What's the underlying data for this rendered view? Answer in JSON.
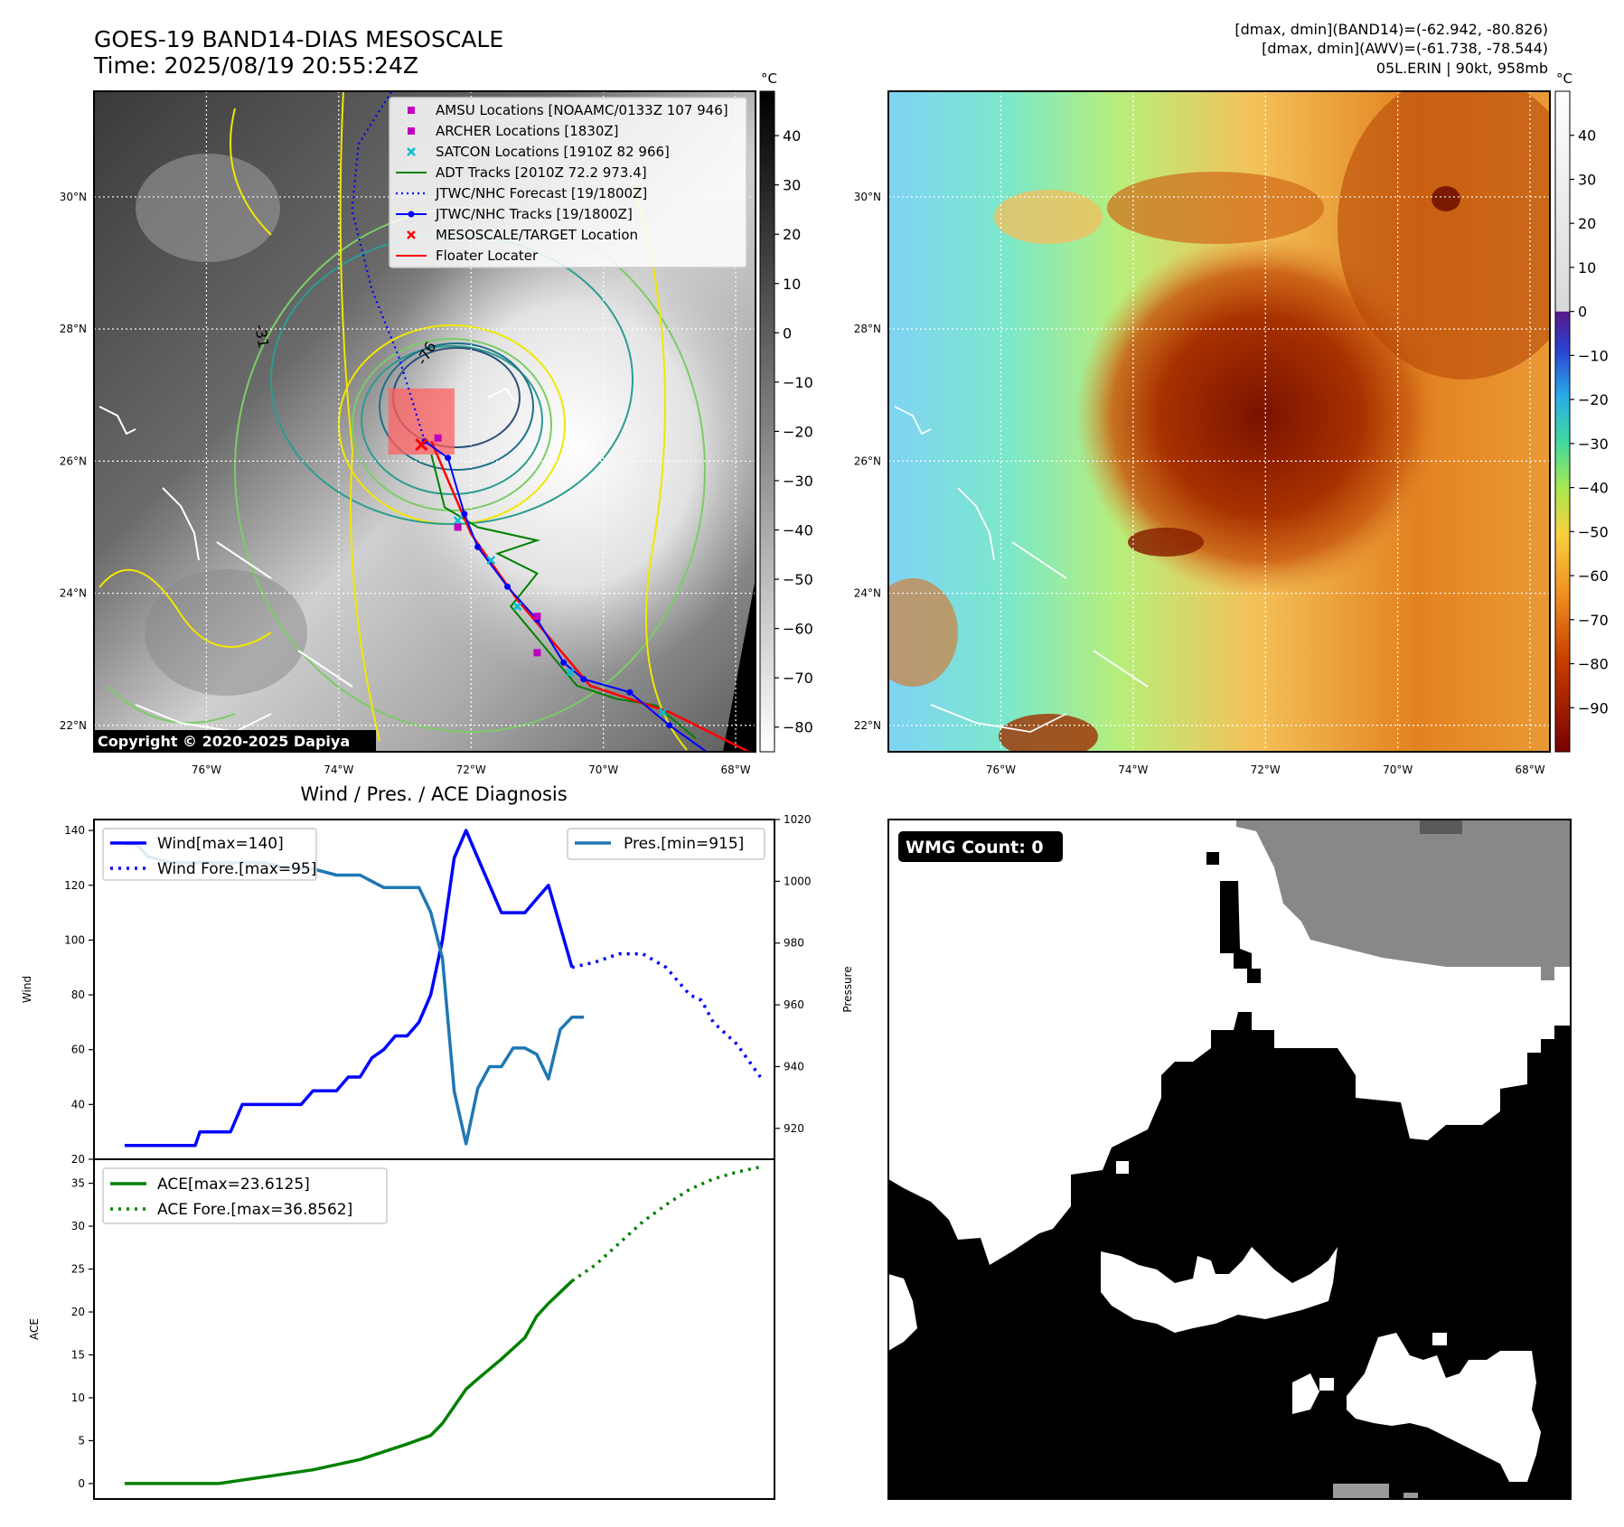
{
  "header": {
    "title": "GOES-19 BAND14-DIAS MESOSCALE",
    "time": "Time: 2025/08/19 20:55:24Z",
    "stats_band14": "[dmax, dmin](BAND14)=(-62.942, -80.826)",
    "stats_awv": "[dmax, dmin](AWV)=(-61.738, -78.544)",
    "storm": "05L.ERIN | 90kt, 958mb",
    "copyright": "Copyright © 2020-2025 Dapiya"
  },
  "map": {
    "lat_labels": [
      "30°N",
      "28°N",
      "26°N",
      "24°N",
      "22°N"
    ],
    "lat_values": [
      30,
      28,
      26,
      24,
      22
    ],
    "lon_labels": [
      "76°W",
      "74°W",
      "72°W",
      "70°W",
      "68°W"
    ],
    "lon_values": [
      -76,
      -74,
      -72,
      -70,
      -68
    ],
    "lat_range": [
      21.6,
      31.6
    ],
    "lon_range": [
      -77.7,
      -67.7
    ],
    "contour_labels": [
      "-31",
      "-76"
    ],
    "legend": [
      {
        "label": "AMSU Locations [NOAAMC/0133Z 107 946]",
        "marker": "square",
        "color": "#c000c0"
      },
      {
        "label": "ARCHER Locations [1830Z]",
        "marker": "square",
        "color": "#c000c0"
      },
      {
        "label": "SATCON Locations [1910Z 82 966]",
        "marker": "x",
        "color": "#00bcd4"
      },
      {
        "label": "ADT Tracks [2010Z 72.2 973.4]",
        "marker": "line",
        "color": "#008000"
      },
      {
        "label": "JTWC/NHC Forecast [19/1800Z]",
        "marker": "dotted",
        "color": "#0000ff"
      },
      {
        "label": "JTWC/NHC Tracks [19/1800Z]",
        "marker": "line-dot",
        "color": "#0000ff"
      },
      {
        "label": "MESOSCALE/TARGET Location",
        "marker": "x",
        "color": "#ff0000"
      },
      {
        "label": "Floater Locater",
        "marker": "line",
        "color": "#ff0000"
      }
    ],
    "track_points": [
      {
        "lon": -68.3,
        "lat": 21.5
      },
      {
        "lon": -69.0,
        "lat": 22.0
      },
      {
        "lon": -69.6,
        "lat": 22.5
      },
      {
        "lon": -70.3,
        "lat": 22.7
      },
      {
        "lon": -70.6,
        "lat": 22.95
      },
      {
        "lon": -71.0,
        "lat": 23.6
      },
      {
        "lon": -71.45,
        "lat": 24.1
      },
      {
        "lon": -71.9,
        "lat": 24.7
      },
      {
        "lon": -72.1,
        "lat": 25.2
      },
      {
        "lon": -72.35,
        "lat": 26.05
      },
      {
        "lon": -72.7,
        "lat": 26.3
      }
    ],
    "forecast_points": [
      {
        "lon": -72.7,
        "lat": 26.3
      },
      {
        "lon": -73.1,
        "lat": 27.6
      },
      {
        "lon": -73.5,
        "lat": 28.6
      },
      {
        "lon": -73.8,
        "lat": 29.8
      },
      {
        "lon": -73.7,
        "lat": 30.8
      },
      {
        "lon": -73.2,
        "lat": 31.6
      }
    ],
    "adt_points": [
      {
        "lon": -68.6,
        "lat": 21.8
      },
      {
        "lon": -69.2,
        "lat": 22.3
      },
      {
        "lon": -69.8,
        "lat": 22.4
      },
      {
        "lon": -70.4,
        "lat": 22.6
      },
      {
        "lon": -70.9,
        "lat": 23.2
      },
      {
        "lon": -71.4,
        "lat": 23.8
      },
      {
        "lon": -71.0,
        "lat": 24.3
      },
      {
        "lon": -71.6,
        "lat": 24.6
      },
      {
        "lon": -71.0,
        "lat": 24.8
      },
      {
        "lon": -71.9,
        "lat": 25.0
      },
      {
        "lon": -72.4,
        "lat": 25.3
      },
      {
        "lon": -72.6,
        "lat": 26.1
      }
    ],
    "floater_points": [
      {
        "lon": -67.8,
        "lat": 21.6
      },
      {
        "lon": -69.0,
        "lat": 22.2
      },
      {
        "lon": -70.2,
        "lat": 22.6
      },
      {
        "lon": -71.3,
        "lat": 23.9
      },
      {
        "lon": -72.0,
        "lat": 24.9
      },
      {
        "lon": -72.6,
        "lat": 26.3
      }
    ],
    "satcon_points": [
      {
        "lon": -69.1,
        "lat": 22.2
      },
      {
        "lon": -70.5,
        "lat": 22.8
      },
      {
        "lon": -71.3,
        "lat": 23.8
      },
      {
        "lon": -71.7,
        "lat": 24.5
      },
      {
        "lon": -72.2,
        "lat": 25.1
      }
    ],
    "amsu_points": [
      {
        "lon": -72.5,
        "lat": 26.35
      },
      {
        "lon": -72.2,
        "lat": 25.0
      },
      {
        "lon": -71.0,
        "lat": 23.65
      },
      {
        "lon": -71.0,
        "lat": 23.1
      }
    ],
    "target": {
      "lon": -72.75,
      "lat": 26.25
    },
    "target_box": {
      "lon_min": -73.25,
      "lon_max": -72.25,
      "lat_min": 26.1,
      "lat_max": 27.1
    }
  },
  "colorbar_left": {
    "unit": "°C",
    "ticks": [
      "40",
      "30",
      "20",
      "10",
      "0",
      "−10",
      "−20",
      "−30",
      "−40",
      "−50",
      "−60",
      "−70",
      "−80"
    ],
    "values": [
      40,
      30,
      20,
      10,
      0,
      -10,
      -20,
      -30,
      -40,
      -50,
      -60,
      -70,
      -80
    ],
    "range": [
      -85,
      49
    ]
  },
  "colorbar_right": {
    "unit": "°C",
    "ticks": [
      "40",
      "30",
      "20",
      "10",
      "0",
      "−10",
      "−20",
      "−30",
      "−40",
      "−50",
      "−60",
      "−70",
      "−80",
      "−90"
    ],
    "values": [
      40,
      30,
      20,
      10,
      0,
      -10,
      -20,
      -30,
      -40,
      -50,
      -60,
      -70,
      -80,
      -90
    ],
    "range": [
      -100,
      50
    ]
  },
  "chart_data": [
    {
      "type": "line",
      "title": "Wind / Pres. / ACE Diagnosis",
      "ylabel": "Wind",
      "y2label": "Pressure",
      "ylim": [
        20,
        144
      ],
      "y2lim": [
        910,
        1020
      ],
      "xlim": [
        -1.3,
        27.6
      ],
      "yticks": [
        20,
        40,
        60,
        80,
        100,
        120,
        140
      ],
      "y2ticks": [
        920,
        940,
        960,
        980,
        1000,
        1020
      ],
      "legend_left": [
        "Wind[max=140]",
        "Wind Fore.[max=95]"
      ],
      "legend_right": [
        "Pres.[min=915]"
      ],
      "series": [
        {
          "name": "Wind[max=140]",
          "color": "#0000ff",
          "style": "solid",
          "x": [
            0,
            1,
            2,
            3,
            3.2,
            4,
            4.5,
            5,
            5.2,
            6,
            7,
            7.5,
            8,
            9,
            9.5,
            10,
            10.5,
            11,
            11.5,
            12,
            12.5,
            13,
            13.5,
            14,
            14.5,
            15,
            16,
            17,
            17.5,
            18,
            19
          ],
          "y": [
            25,
            25,
            25,
            25,
            30,
            30,
            30,
            40,
            40,
            40,
            40,
            40,
            45,
            45,
            50,
            50,
            57,
            60,
            65,
            65,
            70,
            80,
            100,
            130,
            140,
            130,
            110,
            110,
            115,
            120,
            90
          ]
        },
        {
          "name": "Wind Fore.[max=95]",
          "color": "#0000ff",
          "style": "dotted",
          "x": [
            19,
            20,
            21,
            22,
            23,
            24,
            24.5,
            25,
            26,
            27
          ],
          "y": [
            90,
            92,
            95,
            95,
            90,
            80,
            78,
            70,
            62,
            50
          ]
        },
        {
          "name": "Pres.[min=915]",
          "color": "#1f77b4",
          "style": "solid",
          "x": [
            0,
            0.5,
            1,
            2,
            3,
            4,
            5,
            6,
            7,
            8,
            9,
            10,
            10.5,
            11,
            12,
            12.5,
            13,
            13.5,
            14,
            14.5,
            15,
            15.5,
            16,
            16.5,
            17,
            17.5,
            18,
            18.5,
            19,
            19.5
          ],
          "y": [
            1012,
            1012,
            1008,
            1006,
            1006,
            1006,
            1006,
            1006,
            1004,
            1004,
            1002,
            1002,
            1000,
            998,
            998,
            998,
            990,
            975,
            932,
            915,
            933,
            940,
            940,
            946,
            946,
            944,
            936,
            952,
            956,
            956
          ]
        }
      ]
    },
    {
      "type": "line",
      "ylabel": "ACE",
      "ylim": [
        -1.8,
        37.8
      ],
      "xlim": [
        -1.3,
        27.6
      ],
      "yticks": [
        0,
        5,
        10,
        15,
        20,
        25,
        30,
        35
      ],
      "legend": [
        "ACE[max=23.6125]",
        "ACE Fore.[max=36.8562]"
      ],
      "series": [
        {
          "name": "ACE[max=23.6125]",
          "color": "#008000",
          "style": "solid",
          "x": [
            0,
            2,
            4,
            6,
            8,
            10,
            12,
            13,
            13.5,
            14,
            14.5,
            15,
            16,
            17,
            17.5,
            18,
            18.5,
            19
          ],
          "y": [
            0,
            0,
            0,
            0.8,
            1.6,
            2.8,
            4.6,
            5.6,
            7,
            9,
            11,
            12.2,
            14.5,
            17,
            19.5,
            21,
            22.3,
            23.6
          ]
        },
        {
          "name": "ACE Fore.[max=36.8562]",
          "color": "#008000",
          "style": "dotted",
          "x": [
            19,
            20,
            21,
            22,
            23,
            24,
            25,
            26,
            27
          ],
          "y": [
            23.6,
            25.5,
            28,
            30.5,
            32.5,
            34.3,
            35.5,
            36.3,
            36.9
          ]
        }
      ]
    }
  ],
  "wmg": {
    "label": "WMG Count: 0"
  }
}
